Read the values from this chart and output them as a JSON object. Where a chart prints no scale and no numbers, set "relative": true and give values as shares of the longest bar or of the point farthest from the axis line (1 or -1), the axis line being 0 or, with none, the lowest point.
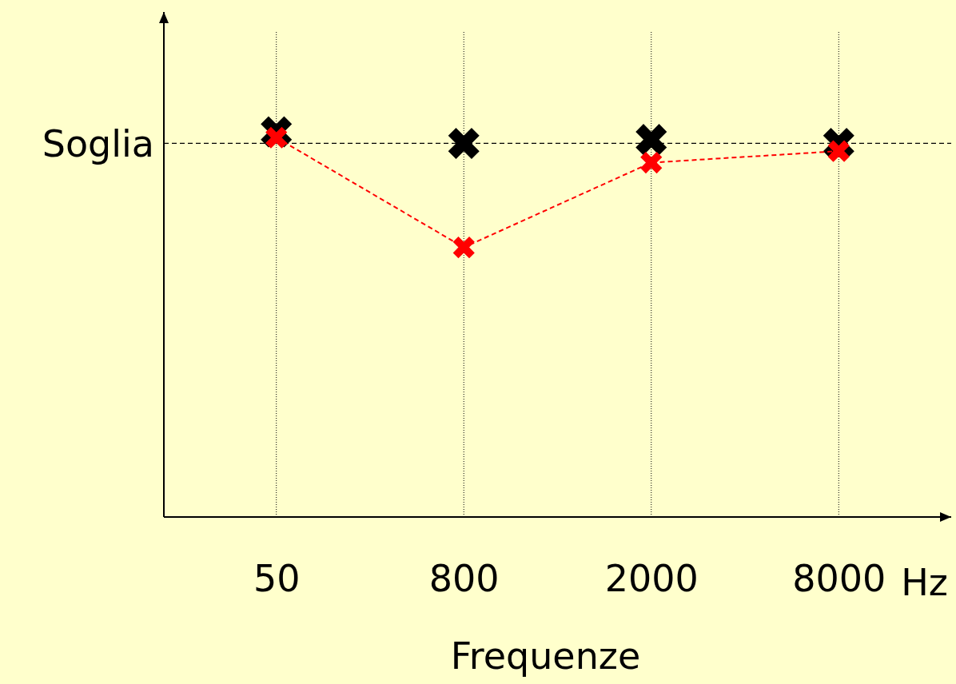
{
  "chart_data": {
    "type": "scatter",
    "relative": true,
    "xlabel": "Frequenze",
    "categories": [
      "50",
      "800",
      "2000",
      "8000"
    ],
    "grid": "x",
    "marker": "cross",
    "series": [
      {
        "type": "scatter",
        "color": "#000000",
        "values": [
          1,
          0.97,
          0.98,
          0.97
        ]
      },
      {
        "type": "line",
        "color": "#ff0000",
        "line_style": "dashed",
        "values": [
          0.985,
          0.7,
          0.92,
          0.95
        ]
      }
    ],
    "ref_lines": [
      {
        "axis": "y",
        "value": 0.97,
        "label": "Soglia",
        "color": "#000000",
        "line_style": "dashed"
      }
    ],
    "annotations": [
      "Hz"
    ]
  }
}
